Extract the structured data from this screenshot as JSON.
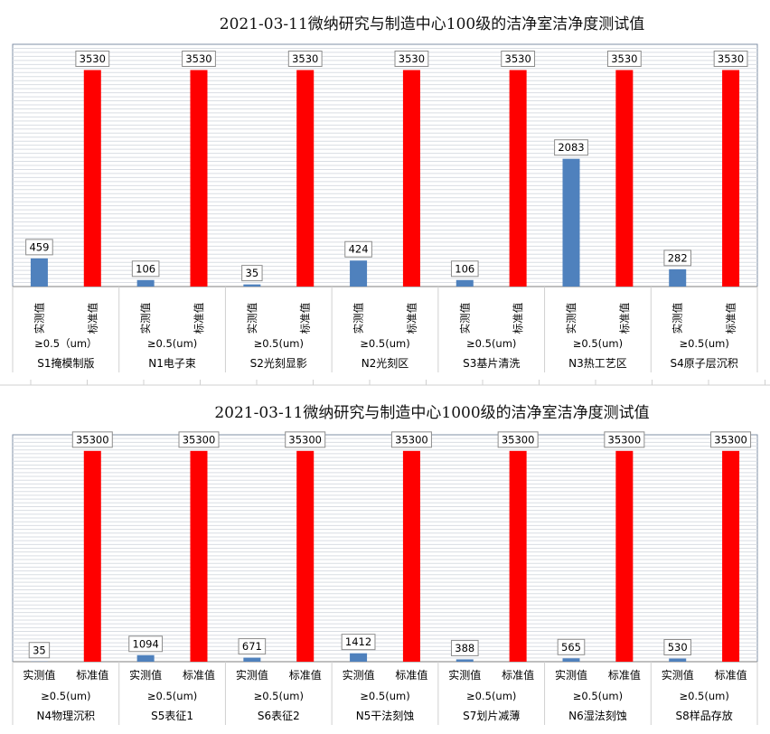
{
  "chart_data": [
    {
      "type": "bar",
      "title": "2021-03-11微纳研究与制造中心100级的洁净室洁净度测试值",
      "series_labels": [
        "实测值",
        "标准值"
      ],
      "size_label": "≥0.5（um）",
      "size_labels": [
        "≥0.5（um）",
        "≥0.5(um)",
        "≥0.5(um)",
        "≥0.5(um)",
        "≥0.5(um)",
        "≥0.5(um)",
        "≥0.5(um)"
      ],
      "groups": [
        "S1掩模制版",
        "N1电子束",
        "S2光刻显影",
        "N2光刻区",
        "S3基片清洗",
        "N3热工艺区",
        "S4原子层沉积"
      ],
      "series": [
        {
          "name": "实测值",
          "color": "#4f81bd",
          "values": [
            459,
            106,
            35,
            424,
            106,
            2083,
            282
          ]
        },
        {
          "name": "标准值",
          "color": "#ff0000",
          "values": [
            3530,
            3530,
            3530,
            3530,
            3530,
            3530,
            3530
          ]
        }
      ],
      "ylim": [
        0,
        3950
      ],
      "label_orientation": "vertical"
    },
    {
      "type": "bar",
      "title": "2021-03-11微纳研究与制造中心1000级的洁净室洁净度测试值",
      "series_labels": [
        "实测值",
        "标准值"
      ],
      "size_labels": [
        "≥0.5(um)",
        "≥0.5(um)",
        "≥0.5(um)",
        "≥0.5(um)",
        "≥0.5(um)",
        "≥0.5(um)",
        "≥0.5(um)"
      ],
      "groups": [
        "N4物理沉积",
        "S5表征1",
        "S6表征2",
        "N5干法刻蚀",
        "S7划片减薄",
        "N6湿法刻蚀",
        "S8样品存放"
      ],
      "series": [
        {
          "name": "实测值",
          "color": "#4f81bd",
          "values": [
            35,
            1094,
            671,
            1412,
            388,
            565,
            530
          ]
        },
        {
          "name": "标准值",
          "color": "#ff0000",
          "values": [
            35300,
            35300,
            35300,
            35300,
            35300,
            35300,
            35300
          ]
        }
      ],
      "ylim": [
        0,
        38000
      ],
      "label_orientation": "horizontal"
    }
  ]
}
